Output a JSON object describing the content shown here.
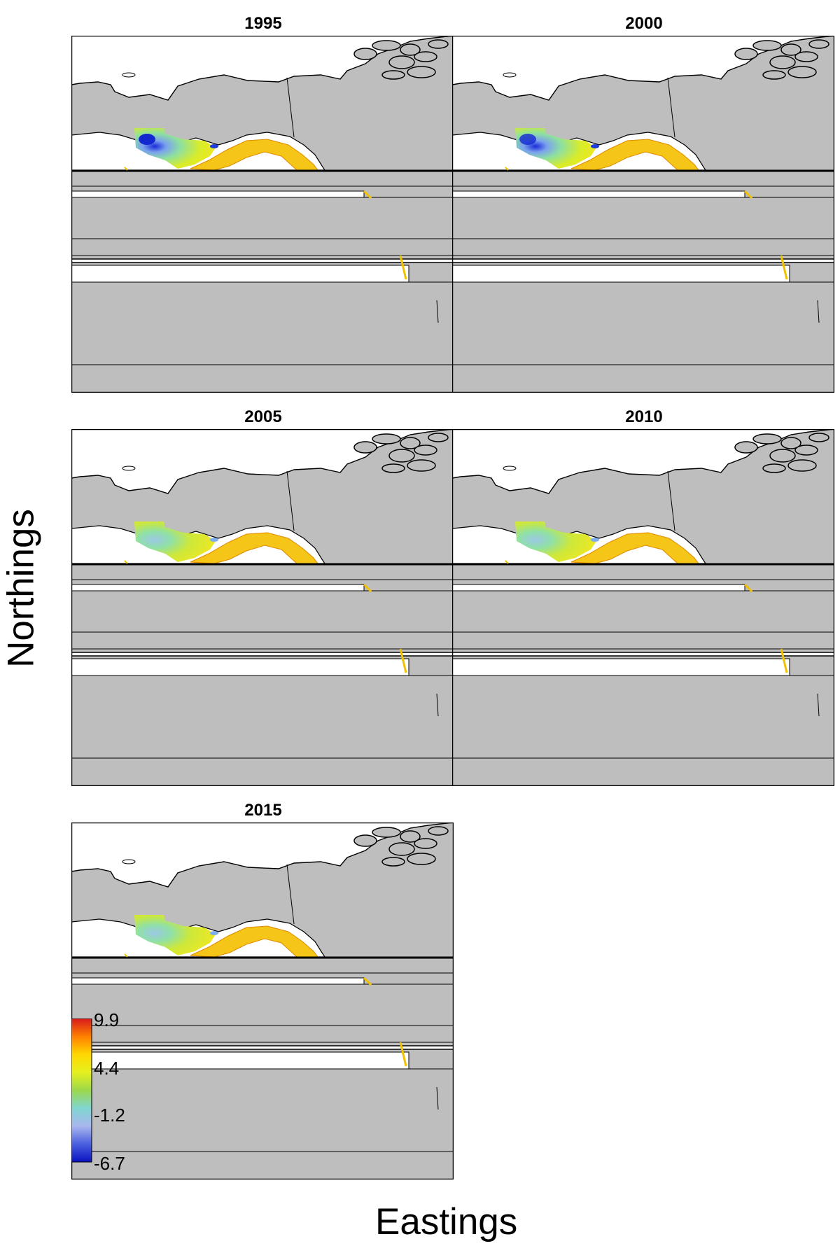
{
  "panels": [
    {
      "title": "1995"
    },
    {
      "title": "2000"
    },
    {
      "title": "2005"
    },
    {
      "title": "2010"
    },
    {
      "title": "2015"
    }
  ],
  "axes": {
    "xlabel": "Eastings",
    "ylabel": "Northings"
  },
  "legend": {
    "ticks": [
      "9.9",
      "4.4",
      "-1.2",
      "-6.7"
    ],
    "colors": [
      "#d7191c",
      "#ff7f00",
      "#ffd700",
      "#e6f01e",
      "#9cd84b",
      "#7fd6d0",
      "#a9b6ee",
      "#4a5fe0",
      "#0a12c0"
    ]
  },
  "colors": {
    "land": "#bebebe",
    "ocean": "#ffffff",
    "outline": "#000000"
  }
}
